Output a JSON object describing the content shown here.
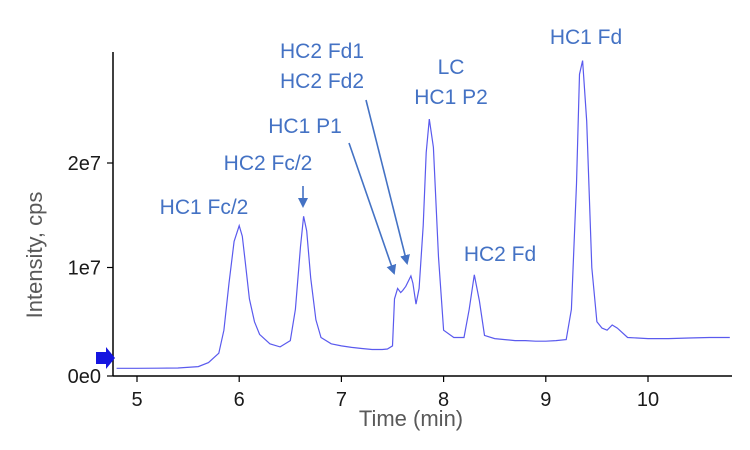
{
  "chart_data": {
    "type": "line",
    "title": "",
    "xlabel": "Time (min)",
    "ylabel": "Intensity, cps",
    "xlim": [
      4.8,
      10.8
    ],
    "ylim": [
      0,
      30000000
    ],
    "x_ticks": [
      5,
      6,
      7,
      8,
      9,
      10
    ],
    "x_tick_labels": [
      "5",
      "6",
      "7",
      "8",
      "9",
      "10"
    ],
    "y_ticks": [
      0,
      10000000,
      20000000
    ],
    "y_tick_labels": [
      "0e0",
      "1e7",
      "2e7"
    ],
    "grid": false,
    "legend": "none",
    "colors": {
      "line": "#5a5aee",
      "annotation": "#4472c4",
      "marker": "#1515e0"
    },
    "series": [
      {
        "x": [
          4.8,
          5.0,
          5.2,
          5.4,
          5.6,
          5.7,
          5.8,
          5.85,
          5.9,
          5.95,
          6.0,
          6.03,
          6.06,
          6.1,
          6.15,
          6.2,
          6.3,
          6.4,
          6.5,
          6.55,
          6.6,
          6.63,
          6.66,
          6.7,
          6.75,
          6.8,
          6.9,
          7.0,
          7.1,
          7.2,
          7.3,
          7.4,
          7.45,
          7.5,
          7.52,
          7.55,
          7.58,
          7.6,
          7.63,
          7.66,
          7.68,
          7.7,
          7.73,
          7.76,
          7.8,
          7.83,
          7.86,
          7.9,
          7.95,
          8.0,
          8.1,
          8.2,
          8.25,
          8.3,
          8.35,
          8.4,
          8.5,
          8.6,
          8.7,
          8.8,
          8.9,
          9.0,
          9.1,
          9.2,
          9.25,
          9.3,
          9.33,
          9.36,
          9.4,
          9.45,
          9.5,
          9.55,
          9.6,
          9.65,
          9.7,
          9.8,
          10.0,
          10.2,
          10.4,
          10.6,
          10.8
        ],
        "y": [
          350000,
          350000,
          360000,
          380000,
          520000,
          900000,
          1800000,
          4000000,
          8500000,
          12500000,
          14000000,
          13000000,
          10500000,
          7000000,
          4800000,
          3600000,
          2700000,
          2400000,
          3000000,
          6000000,
          12000000,
          14900000,
          13500000,
          9000000,
          5000000,
          3300000,
          2700000,
          2500000,
          2350000,
          2250000,
          2150000,
          2150000,
          2200000,
          2500000,
          7000000,
          8000000,
          7600000,
          7800000,
          8200000,
          8800000,
          9200000,
          8500000,
          6500000,
          8000000,
          14000000,
          21000000,
          24200000,
          21500000,
          11000000,
          4000000,
          3300000,
          3300000,
          6000000,
          9300000,
          6800000,
          3500000,
          3200000,
          3100000,
          3000000,
          3000000,
          2950000,
          2950000,
          3000000,
          3100000,
          6000000,
          18000000,
          28500000,
          29800000,
          24000000,
          10000000,
          4800000,
          4200000,
          4000000,
          4500000,
          4200000,
          3300000,
          3200000,
          3200000,
          3250000,
          3300000,
          3300000
        ]
      }
    ],
    "annotations": [
      {
        "id": "hc1-fc2",
        "lines": [
          "HC1 Fc/2"
        ],
        "x": 6.0
      },
      {
        "id": "hc2-fc2",
        "lines": [
          "HC2 Fc/2"
        ],
        "x": 6.65
      },
      {
        "id": "hc1-p1",
        "lines": [
          "HC1 P1"
        ],
        "x": 7.55
      },
      {
        "id": "hc2-fd1-fd2",
        "lines": [
          "HC2 Fd1",
          "HC2 Fd2"
        ],
        "x": 7.66
      },
      {
        "id": "lc-hc1-p2",
        "lines": [
          "LC",
          "HC1 P2"
        ],
        "x": 7.86
      },
      {
        "id": "hc2-fd",
        "lines": [
          "HC2 Fd"
        ],
        "x": 8.3
      },
      {
        "id": "hc1-fd",
        "lines": [
          "HC1 Fd"
        ],
        "x": 9.36
      }
    ]
  }
}
